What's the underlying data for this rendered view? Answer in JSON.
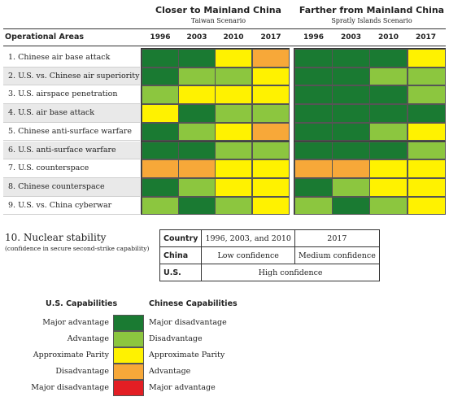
{
  "header": {
    "group_left_title": "Closer to Mainland China",
    "group_left_sub": "Taiwan Scenario",
    "group_right_title": "Farther from Mainland China",
    "group_right_sub": "Spratly Islands Scenario",
    "areas_label": "Operational Areas"
  },
  "chart_data": {
    "type": "heatmap",
    "years": [
      "1996",
      "2003",
      "2010",
      "2017"
    ],
    "rows": [
      "1. Chinese air base attack",
      "2. U.S. vs. Chinese air superiority",
      "3. U.S. airspace penetration",
      "4. U.S. air base attack",
      "5. Chinese anti-surface warfare",
      "6. U.S. anti-surface warfare",
      "7. U.S. counterspace",
      "8. Chinese counterspace",
      "9. U.S. vs. China cyberwar"
    ],
    "scale": [
      "Major advantage",
      "Advantage",
      "Approximate Parity",
      "Disadvantage",
      "Major disadvantage"
    ],
    "colors": [
      "#1a7a32",
      "#8cc63f",
      "#fff200",
      "#f7a839",
      "#e31e24"
    ],
    "taiwan": [
      [
        0,
        0,
        2,
        3
      ],
      [
        0,
        1,
        1,
        2
      ],
      [
        1,
        2,
        2,
        2
      ],
      [
        2,
        0,
        1,
        1
      ],
      [
        0,
        1,
        2,
        3
      ],
      [
        0,
        0,
        1,
        1
      ],
      [
        3,
        3,
        2,
        2
      ],
      [
        0,
        1,
        2,
        2
      ],
      [
        1,
        0,
        1,
        2
      ]
    ],
    "spratly": [
      [
        0,
        0,
        0,
        2
      ],
      [
        0,
        0,
        1,
        1
      ],
      [
        0,
        0,
        0,
        1
      ],
      [
        0,
        0,
        0,
        0
      ],
      [
        0,
        0,
        1,
        2
      ],
      [
        0,
        0,
        0,
        1
      ],
      [
        3,
        3,
        2,
        2
      ],
      [
        0,
        1,
        2,
        2
      ],
      [
        1,
        0,
        1,
        2
      ]
    ]
  },
  "nuclear": {
    "title": "10. Nuclear stability",
    "subtitle": "(confidence in secure second-strike capability)",
    "col_country": "Country",
    "col_early": "1996, 2003, and 2010",
    "col_late": "2017",
    "china_label": "China",
    "china_early": "Low confidence",
    "china_late": "Medium confidence",
    "us_label": "U.S.",
    "us_all": "High confidence"
  },
  "legend": {
    "us_head": "U.S. Capabilities",
    "cn_head": "Chinese Capabilities",
    "us": [
      "Major advantage",
      "Advantage",
      "Approximate Parity",
      "Disadvantage",
      "Major disadvantage"
    ],
    "cn": [
      "Major disadvantage",
      "Disadvantage",
      "Approximate Parity",
      "Advantage",
      "Major advantage"
    ]
  }
}
